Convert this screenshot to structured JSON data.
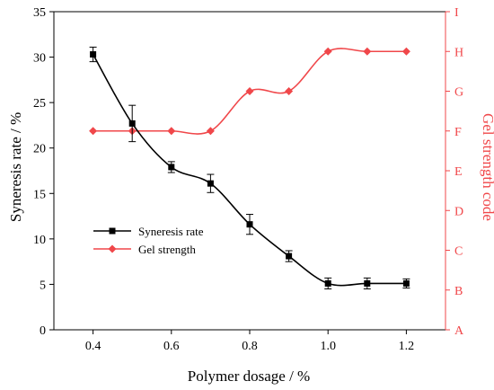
{
  "chart_data": {
    "type": "line",
    "xlabel": "Polymer dosage / %",
    "ylabel_left": "Syneresis rate / %",
    "ylabel_right": "Gel strength code",
    "xlim": [
      0.3,
      1.3
    ],
    "ylim_left": [
      0,
      35
    ],
    "x_ticks": [
      "0.4",
      "0.6",
      "0.8",
      "1.0",
      "1.2"
    ],
    "y_left_ticks": [
      "0",
      "5",
      "10",
      "15",
      "20",
      "25",
      "30",
      "35"
    ],
    "y_right_ticks": [
      "A",
      "B",
      "C",
      "D",
      "E",
      "F",
      "G",
      "H",
      "I"
    ],
    "legend_position": "center-left",
    "series": [
      {
        "name": "Syneresis rate",
        "axis": "left",
        "color": "#000000",
        "marker": "square",
        "x": [
          0.4,
          0.5,
          0.6,
          0.7,
          0.8,
          0.9,
          1.0,
          1.1,
          1.2
        ],
        "y": [
          30.3,
          22.7,
          17.9,
          16.1,
          11.6,
          8.1,
          5.1,
          5.1,
          5.1
        ],
        "error": [
          0.8,
          2.0,
          0.6,
          1.0,
          1.1,
          0.6,
          0.6,
          0.6,
          0.5
        ]
      },
      {
        "name": "Gel strength",
        "axis": "right",
        "color": "#f0474a",
        "marker": "diamond",
        "x": [
          0.4,
          0.5,
          0.6,
          0.7,
          0.8,
          0.9,
          1.0,
          1.1,
          1.2
        ],
        "y": [
          "F",
          "F",
          "F",
          "F",
          "G",
          "G",
          "H",
          "H",
          "H"
        ]
      }
    ]
  }
}
